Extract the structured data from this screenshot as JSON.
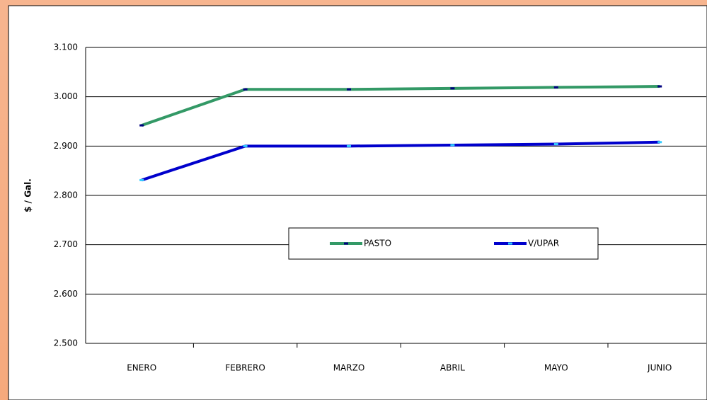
{
  "chart_data": {
    "type": "line",
    "y_label": "$ / Gal.",
    "categories": [
      "ENERO",
      "FEBRERO",
      "MARZO",
      "ABRIL",
      "MAYO",
      "JUNIO"
    ],
    "series": [
      {
        "name": "PASTO",
        "color": "#339966",
        "marker_color": "#000080",
        "values": [
          2942,
          3015,
          3015,
          3017,
          3019,
          3021
        ]
      },
      {
        "name": "V/UPAR",
        "color": "#0000cc",
        "marker_color": "#33ccff",
        "values": [
          2831,
          2900,
          2900,
          2902,
          2904,
          2908
        ]
      }
    ],
    "ylim": [
      2500,
      3100
    ],
    "yticks": [
      {
        "value": 2500,
        "label": "2.500"
      },
      {
        "value": 2600,
        "label": "2.600"
      },
      {
        "value": 2700,
        "label": "2.700"
      },
      {
        "value": 2800,
        "label": "2.800"
      },
      {
        "value": 2900,
        "label": "2.900"
      },
      {
        "value": 3000,
        "label": "3.000"
      },
      {
        "value": 3100,
        "label": "3.100"
      }
    ],
    "grid": true
  }
}
